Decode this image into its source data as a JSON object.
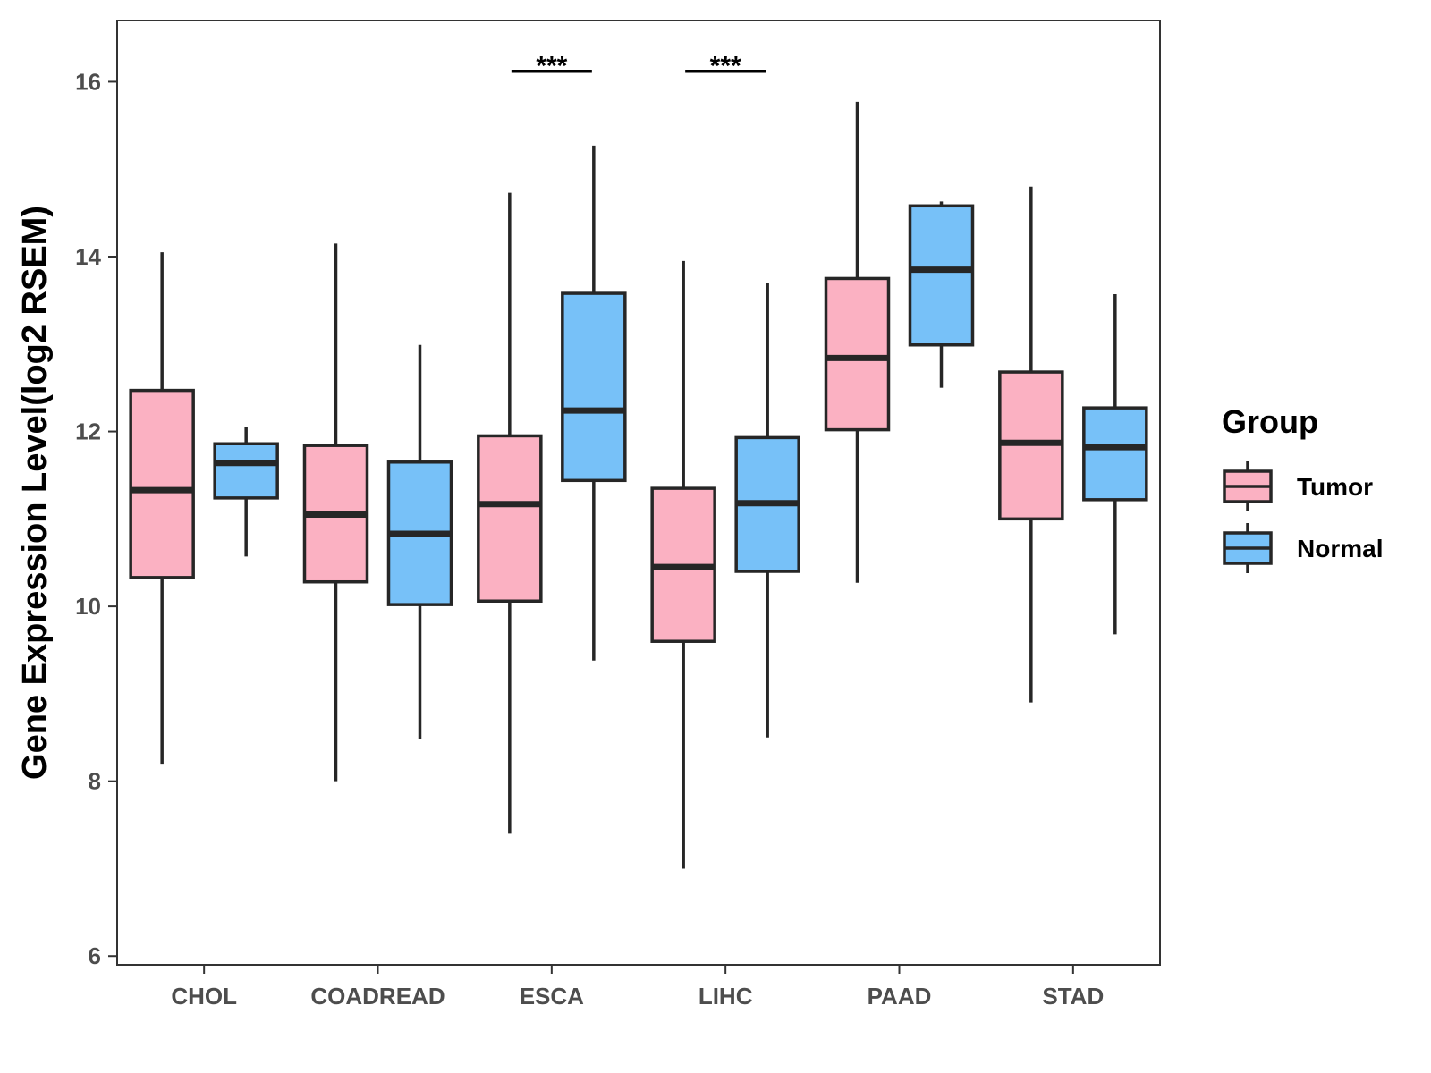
{
  "chart_data": {
    "type": "boxplot",
    "title": "",
    "xlabel": "",
    "ylabel": "Gene Expression Level(log2 RSEM)",
    "ylim": [
      5.9,
      16.7
    ],
    "yticks": [
      6,
      8,
      10,
      12,
      14,
      16
    ],
    "grid": false,
    "legend": {
      "title": "Group",
      "position": "right"
    },
    "categories": [
      "CHOL",
      "COADREAD",
      "ESCA",
      "LIHC",
      "PAAD",
      "STAD"
    ],
    "series": [
      {
        "name": "Tumor",
        "color": "#FBB1C2",
        "boxes": [
          {
            "min": 8.2,
            "q1": 10.33,
            "median": 11.33,
            "q3": 12.47,
            "max": 14.05
          },
          {
            "min": 8.0,
            "q1": 10.28,
            "median": 11.05,
            "q3": 11.84,
            "max": 14.15
          },
          {
            "min": 7.4,
            "q1": 10.06,
            "median": 11.17,
            "q3": 11.95,
            "max": 14.73
          },
          {
            "min": 7.0,
            "q1": 9.6,
            "median": 10.45,
            "q3": 11.35,
            "max": 13.95
          },
          {
            "min": 10.27,
            "q1": 12.02,
            "median": 12.84,
            "q3": 13.75,
            "max": 15.77
          },
          {
            "min": 8.9,
            "q1": 11.0,
            "median": 11.87,
            "q3": 12.68,
            "max": 14.8
          }
        ]
      },
      {
        "name": "Normal",
        "color": "#77C1F8",
        "boxes": [
          {
            "min": 10.57,
            "q1": 11.24,
            "median": 11.64,
            "q3": 11.86,
            "max": 12.05
          },
          {
            "min": 8.48,
            "q1": 10.02,
            "median": 10.83,
            "q3": 11.65,
            "max": 12.99
          },
          {
            "min": 9.38,
            "q1": 11.44,
            "median": 12.24,
            "q3": 13.58,
            "max": 15.27
          },
          {
            "min": 8.5,
            "q1": 10.4,
            "median": 11.18,
            "q3": 11.93,
            "max": 13.7
          },
          {
            "min": 12.5,
            "q1": 12.99,
            "median": 13.85,
            "q3": 14.58,
            "max": 14.63
          },
          {
            "min": 9.68,
            "q1": 11.22,
            "median": 11.82,
            "q3": 12.27,
            "max": 13.57
          }
        ]
      }
    ],
    "annotations": [
      {
        "category": "ESCA",
        "label": "***",
        "y": 16.12
      },
      {
        "category": "LIHC",
        "label": "***",
        "y": 16.12
      }
    ]
  }
}
